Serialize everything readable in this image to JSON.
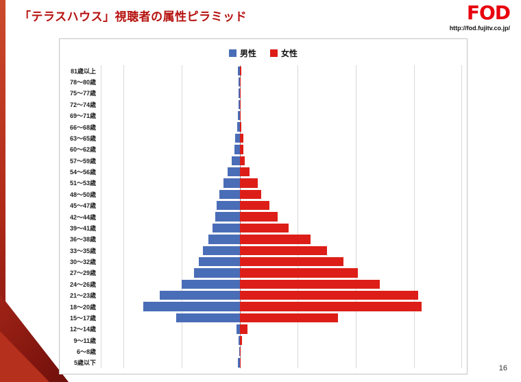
{
  "header": {
    "title": "「テラスハウス」視聴者の属性ピラミッド",
    "logo_text": "FOD",
    "url": "http://fod.fujitv.co.jp/"
  },
  "footer": {
    "page_number": "16"
  },
  "colors": {
    "male": "#4a6db7",
    "female": "#dd1e18",
    "title_red": "#b5120f",
    "logo_red": "#e8000d",
    "gridline": "#d9d9d9",
    "center_axis": "#8a8a8a"
  },
  "chart_data": {
    "type": "bar",
    "subtype": "population-pyramid",
    "orientation": "horizontal",
    "title": "「テラスハウス」視聴者の属性ピラミッド",
    "legend_position": "top",
    "grid": true,
    "axis_values_labeled": false,
    "value_unit": "relative units (longest bar = 100); axis tick values not shown in image",
    "categories_top_to_bottom": [
      "81歳以上",
      "78〜80歳",
      "75〜77歳",
      "72〜74歳",
      "69〜71歳",
      "66〜68歳",
      "63〜65歳",
      "60〜62歳",
      "57〜59歳",
      "54〜56歳",
      "51〜53歳",
      "48〜50歳",
      "45〜47歳",
      "42〜44歳",
      "39〜41歳",
      "36〜38歳",
      "33〜35歳",
      "30〜32歳",
      "27〜29歳",
      "24〜26歳",
      "21〜23歳",
      "18〜20歳",
      "15〜17歳",
      "12〜14歳",
      "9〜11歳",
      "6〜8歳",
      "5歳以下"
    ],
    "series": [
      {
        "name": "男性",
        "side": "left",
        "color": "#4a6db7",
        "values": [
          1,
          0.4,
          0.4,
          0.6,
          1,
          1.5,
          2.5,
          3,
          4.5,
          6.5,
          9,
          11,
          12.5,
          13.5,
          15,
          17,
          20,
          22.5,
          25,
          32,
          44,
          53,
          35,
          1.8,
          0.4,
          0.3,
          0.8
        ]
      },
      {
        "name": "女性",
        "side": "right",
        "color": "#dd1e18",
        "values": [
          1,
          0.4,
          0.5,
          0.5,
          0.7,
          1,
          2,
          2,
          3,
          5.5,
          10,
          12,
          16.5,
          21,
          27,
          39,
          48,
          57,
          65,
          77,
          98,
          100,
          54,
          4.5,
          1.5,
          0.7,
          0.7
        ]
      }
    ]
  }
}
